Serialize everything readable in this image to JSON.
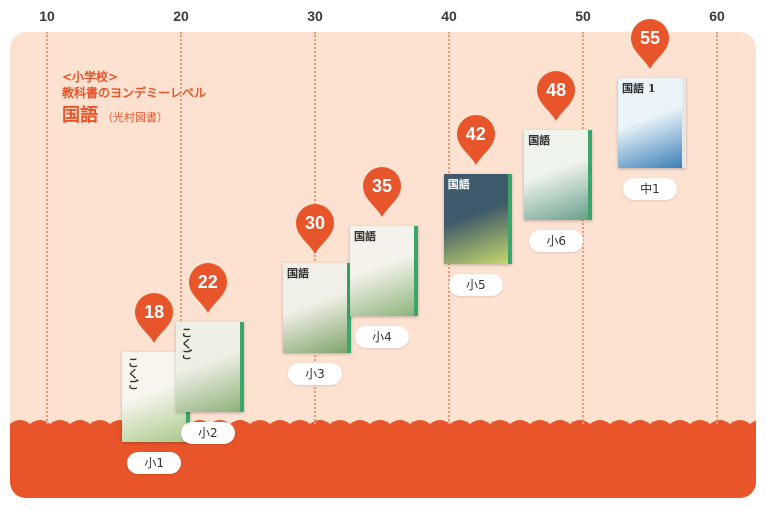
{
  "chart_data": {
    "type": "scatter",
    "title": "国語",
    "category_label": "<小学校>",
    "subtitle": "教科書のヨンデミーレベル",
    "publisher": "（光村図書）",
    "x_ticks": [
      "10",
      "20",
      "30",
      "40",
      "50",
      "60"
    ],
    "xlim": [
      10,
      60
    ],
    "grid": "vertical dotted",
    "points": [
      {
        "grade": "小1",
        "level": 18,
        "cover_title": "こくご"
      },
      {
        "grade": "小2",
        "level": 22,
        "cover_title": "こくご"
      },
      {
        "grade": "小3",
        "level": 30,
        "cover_title": "国語"
      },
      {
        "grade": "小4",
        "level": 35,
        "cover_title": "国語"
      },
      {
        "grade": "小5",
        "level": 42,
        "cover_title": "国語"
      },
      {
        "grade": "小6",
        "level": 48,
        "cover_title": "国語"
      },
      {
        "grade": "中1",
        "level": 55,
        "cover_title": "国語 1"
      }
    ]
  },
  "colors": {
    "accent": "#e8552a",
    "panel": "#fde2d2",
    "band": "#e8552a",
    "grid": "#ea9a7a"
  }
}
